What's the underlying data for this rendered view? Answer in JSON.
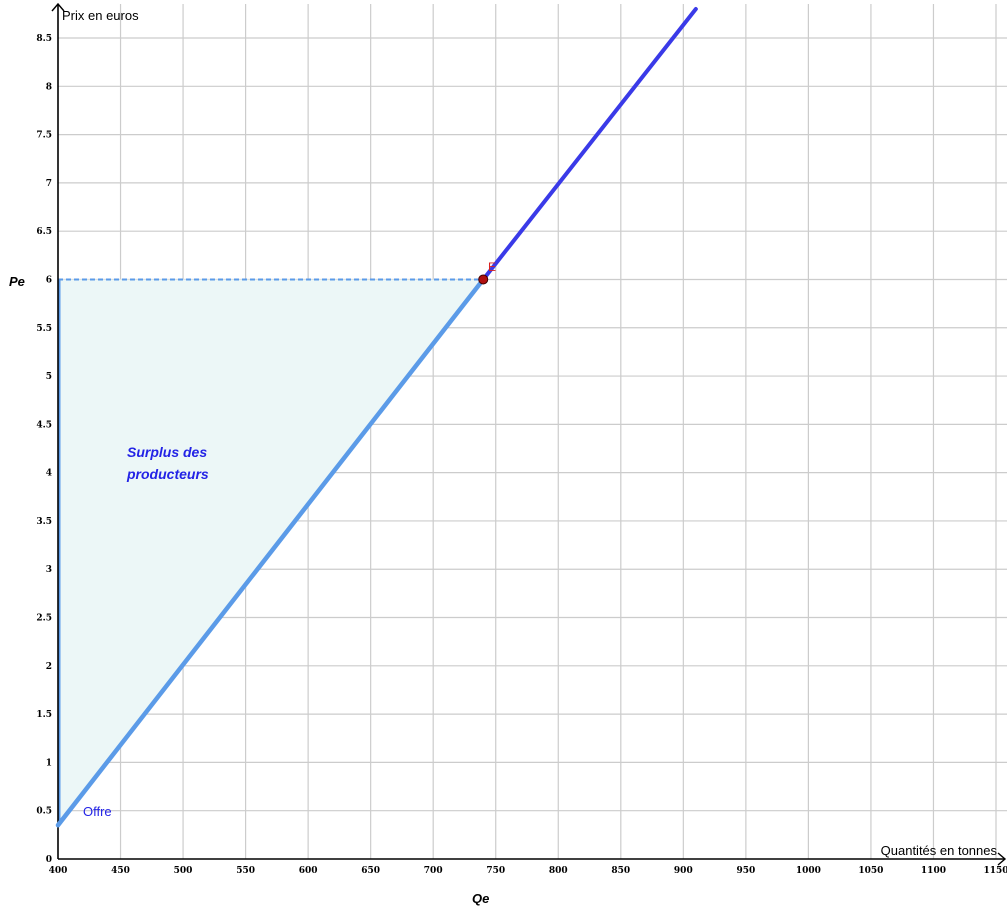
{
  "chart_data": {
    "type": "line",
    "x_axis_title": "Quantités en tonnes",
    "y_axis_title": "Prix en euros",
    "x_range": [
      400,
      1150
    ],
    "y_range": [
      0,
      8.5
    ],
    "x_ticks": [
      "400",
      "450",
      "500",
      "550",
      "600",
      "650",
      "700",
      "750",
      "800",
      "850",
      "900",
      "950",
      "1000",
      "1050",
      "1100",
      "1150"
    ],
    "y_ticks": [
      "0",
      "0.5",
      "1",
      "1.5",
      "2",
      "2.5",
      "3",
      "3.5",
      "4",
      "4.5",
      "5",
      "5.5",
      "6",
      "6.5",
      "7",
      "7.5",
      "8",
      "8.5"
    ],
    "grid": true,
    "series": [
      {
        "name": "Offre",
        "color": "#3a3ae8",
        "points": [
          [
            400,
            0.35
          ],
          [
            740,
            6.0
          ],
          [
            910,
            8.8
          ]
        ]
      }
    ],
    "equilibrium": {
      "label": "E",
      "x": 740,
      "y": 6.0,
      "color": "#b01010"
    },
    "price_label": "Pe",
    "quantity_label": "Qe",
    "shaded_region": {
      "label_line1": "Surplus des",
      "label_line2": "producteurs",
      "fill": "#ecf7f7",
      "edge_color": "#5b9be8"
    },
    "grid_color": "#cccccc"
  }
}
